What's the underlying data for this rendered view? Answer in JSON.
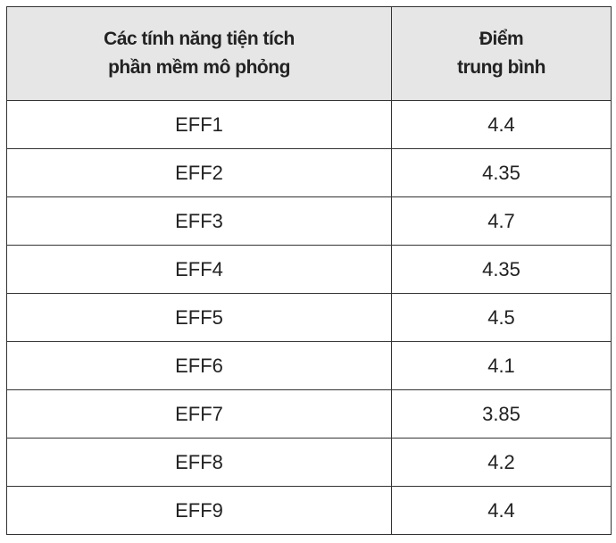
{
  "table": {
    "header": [
      [
        "Các tính năng tiện tích",
        "phần mềm mô phỏng"
      ],
      [
        "Điểm",
        "trung bình"
      ]
    ],
    "rows": [
      [
        "EFF1",
        4.4
      ],
      [
        "EFF2",
        4.35
      ],
      [
        "EFF3",
        4.7
      ],
      [
        "EFF4",
        4.35
      ],
      [
        "EFF5",
        4.5
      ],
      [
        "EFF6",
        4.1
      ],
      [
        "EFF7",
        3.85
      ],
      [
        "EFF8",
        4.2
      ],
      [
        "EFF9",
        4.4
      ]
    ]
  }
}
